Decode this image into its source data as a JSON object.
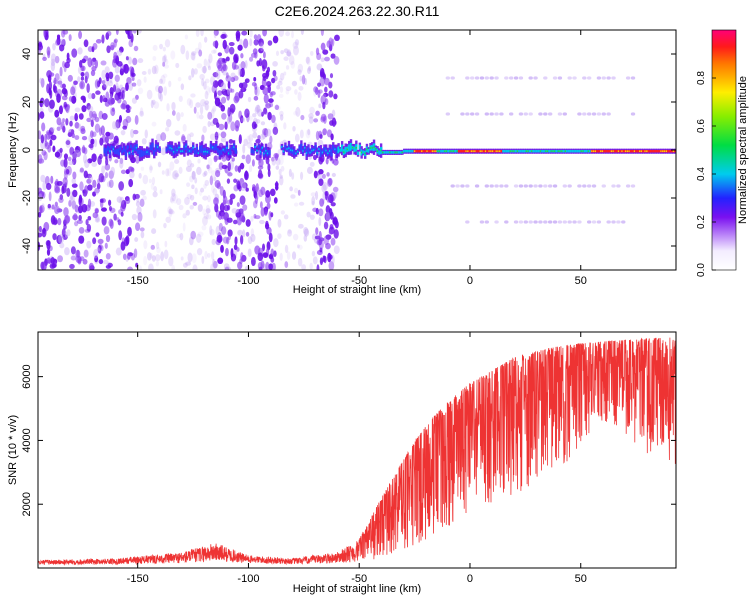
{
  "title": "C2E6.2024.263.22.30.R11",
  "colors": {
    "snr_line": "#ee3333",
    "axis": "#000000",
    "background": "#ffffff"
  },
  "chart_data": [
    {
      "id": "spectrogram",
      "type": "heatmap",
      "title": "",
      "xlabel": "Height of straight line (km)",
      "ylabel": "Frequency (Hz)",
      "xlim": [
        -195,
        93
      ],
      "ylim": [
        -50,
        50
      ],
      "xticks": [
        -150,
        -100,
        -50,
        0,
        50
      ],
      "xtick_labels": [
        "-150",
        "-100",
        "-50",
        "0",
        "50"
      ],
      "yticks": [
        -40,
        -20,
        0,
        20,
        40
      ],
      "ytick_labels": [
        "-40",
        "-20",
        "0",
        "20",
        "40"
      ],
      "colorbar": {
        "label": "Normalized spectral amplitude",
        "range": [
          0,
          1
        ],
        "ticks": [
          0.0,
          0.2,
          0.4,
          0.6,
          0.8
        ],
        "tick_labels": [
          "0.0",
          "0.2",
          "0.4",
          "0.6",
          "0.8"
        ]
      },
      "features": {
        "main_line_frequency_hz": 0,
        "noise_region_x": [
          -195,
          -60
        ],
        "noise_bands_x": [
          [
            -195,
            -150
          ],
          [
            -115,
            -100
          ],
          [
            -98,
            -87
          ],
          [
            -70,
            -60
          ]
        ],
        "sidebands_hz": [
          30,
          15,
          -15,
          -30
        ],
        "sideband_x_range": [
          -10,
          75
        ],
        "red_core_segments_x": [
          [
            -25,
            -15
          ],
          [
            -5,
            15
          ],
          [
            55,
            93
          ]
        ]
      }
    },
    {
      "id": "snr",
      "type": "line",
      "title": "",
      "xlabel": "Height of straight line (km)",
      "ylabel": "SNR (10 * v/v)",
      "xlim": [
        -195,
        93
      ],
      "ylim": [
        0,
        7400
      ],
      "xticks": [
        -150,
        -100,
        -50,
        0,
        50
      ],
      "xtick_labels": [
        "-150",
        "-100",
        "-50",
        "0",
        "50"
      ],
      "yticks": [
        2000,
        4000,
        6000
      ],
      "ytick_labels": [
        "2000",
        "4000",
        "6000"
      ],
      "series": [
        {
          "name": "SNR",
          "x": [
            -195,
            -160,
            -130,
            -115,
            -100,
            -80,
            -60,
            -50,
            -40,
            -30,
            -20,
            -10,
            0,
            10,
            20,
            30,
            40,
            50,
            60,
            70,
            80,
            93
          ],
          "envelope": [
            250,
            300,
            500,
            800,
            400,
            300,
            500,
            900,
            2200,
            3400,
            4500,
            5200,
            5800,
            6200,
            6600,
            6800,
            6950,
            7050,
            7100,
            7150,
            7200,
            7250
          ],
          "floor": [
            100,
            120,
            150,
            200,
            150,
            120,
            150,
            200,
            300,
            500,
            900,
            1300,
            1700,
            2000,
            2300,
            2600,
            3000,
            3800,
            4600,
            4200,
            3600,
            3200
          ]
        }
      ]
    }
  ]
}
